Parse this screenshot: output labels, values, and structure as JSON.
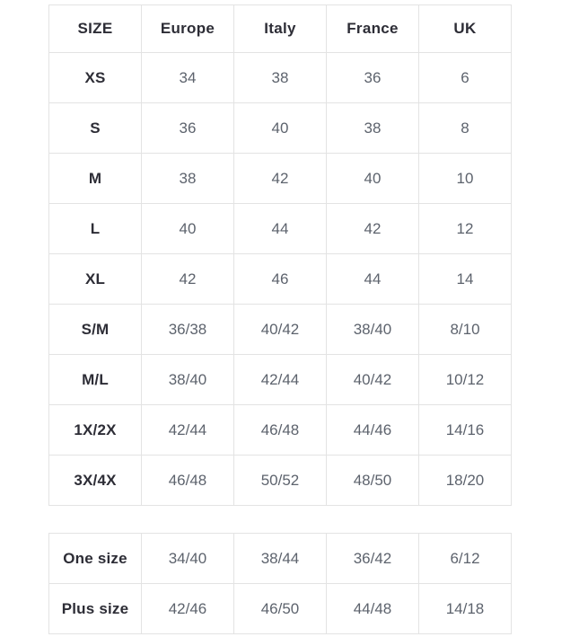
{
  "chart_data": {
    "type": "table",
    "columns": [
      "SIZE",
      "Europe",
      "Italy",
      "France",
      "UK"
    ],
    "rows": [
      [
        "XS",
        "34",
        "38",
        "36",
        "6"
      ],
      [
        "S",
        "36",
        "40",
        "38",
        "8"
      ],
      [
        "M",
        "38",
        "42",
        "40",
        "10"
      ],
      [
        "L",
        "40",
        "44",
        "42",
        "12"
      ],
      [
        "XL",
        "42",
        "46",
        "44",
        "14"
      ],
      [
        "S/M",
        "36/38",
        "40/42",
        "38/40",
        "8/10"
      ],
      [
        "M/L",
        "38/40",
        "42/44",
        "40/42",
        "10/12"
      ],
      [
        "1X/2X",
        "42/44",
        "46/48",
        "44/46",
        "14/16"
      ],
      [
        "3X/4X",
        "46/48",
        "50/52",
        "48/50",
        "18/20"
      ]
    ],
    "secondary_rows": [
      [
        "One size",
        "34/40",
        "38/44",
        "36/42",
        "6/12"
      ],
      [
        "Plus size",
        "42/46",
        "46/50",
        "44/48",
        "14/18"
      ]
    ],
    "layout_hints": {
      "grid": true,
      "header_row": true,
      "bold_first_column": true
    }
  },
  "colors": {
    "background": "#ffffff",
    "border": "#e3e3e3",
    "header_text": "#2d2d36",
    "value_text": "#5d636d"
  }
}
